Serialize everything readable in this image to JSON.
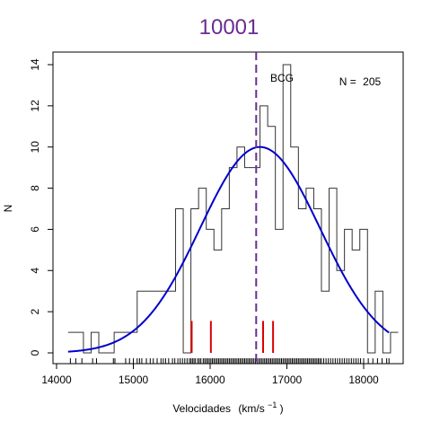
{
  "chart_data": {
    "type": "histogram",
    "title": "10001",
    "title_color": "#6a2c91",
    "xlabel": "Velocidades",
    "xlabel_unit": "(km/s",
    "xlabel_exp": "−1",
    "xlabel_close": ")",
    "ylabel": "N",
    "xlim": [
      14000,
      18500
    ],
    "ylim": [
      0,
      14
    ],
    "x_ticks": [
      14000,
      15000,
      16000,
      17000,
      18000
    ],
    "y_ticks": [
      0,
      2,
      4,
      6,
      8,
      10,
      12,
      14
    ],
    "grid": false,
    "annotation_n_label": "N =",
    "annotation_n_value": "205",
    "bcg_label": "BCG",
    "bcg_velocity": 16600,
    "bcg_color": "#6a2c91",
    "bin_width": 100,
    "histogram_steps": [
      [
        14150,
        1
      ],
      [
        14350,
        0
      ],
      [
        14450,
        1
      ],
      [
        14550,
        0
      ],
      [
        14750,
        1
      ],
      [
        15050,
        3
      ],
      [
        15550,
        7
      ],
      [
        15650,
        0
      ],
      [
        15750,
        7
      ],
      [
        15850,
        8
      ],
      [
        15950,
        6
      ],
      [
        16050,
        5
      ],
      [
        16150,
        7
      ],
      [
        16250,
        9
      ],
      [
        16350,
        10
      ],
      [
        16450,
        9
      ],
      [
        16650,
        12
      ],
      [
        16750,
        11
      ],
      [
        16850,
        6
      ],
      [
        16950,
        14
      ],
      [
        17050,
        10
      ],
      [
        17150,
        7
      ],
      [
        17250,
        8
      ],
      [
        17350,
        7
      ],
      [
        17450,
        3
      ],
      [
        17550,
        8
      ],
      [
        17650,
        4
      ],
      [
        17750,
        6
      ],
      [
        17850,
        5
      ],
      [
        17950,
        6
      ],
      [
        18050,
        0
      ],
      [
        18150,
        3
      ],
      [
        18250,
        0
      ],
      [
        18350,
        1
      ]
    ],
    "fit": {
      "type": "gaussian",
      "color": "#0000cc",
      "amplitude": 10,
      "mean": 16650,
      "sigma": 780,
      "x_range": [
        14150,
        18330
      ]
    },
    "red_markers": [
      15760,
      16010,
      16690,
      16820
    ],
    "red_marker_height": 1.55,
    "red_color": "#dd0000",
    "rug": [
      14180,
      14250,
      14330,
      14470,
      14520,
      14740,
      14760,
      14900,
      14950,
      15000,
      15050,
      15080,
      15110,
      15170,
      15220,
      15260,
      15310,
      15360,
      15390,
      15420,
      15460,
      15510,
      15540,
      15580,
      15610,
      15640,
      15670,
      15700,
      15730,
      15750,
      15770,
      15790,
      15810,
      15840,
      15860,
      15880,
      15910,
      15930,
      15950,
      15970,
      15990,
      16010,
      16030,
      16050,
      16070,
      16090,
      16110,
      16130,
      16150,
      16170,
      16190,
      16210,
      16230,
      16250,
      16270,
      16290,
      16310,
      16330,
      16350,
      16370,
      16390,
      16410,
      16430,
      16450,
      16470,
      16490,
      16510,
      16530,
      16550,
      16570,
      16590,
      16610,
      16630,
      16650,
      16670,
      16690,
      16710,
      16730,
      16750,
      16770,
      16790,
      16810,
      16830,
      16850,
      16870,
      16890,
      16910,
      16930,
      16950,
      16970,
      16990,
      17010,
      17030,
      17050,
      17070,
      17090,
      17110,
      17130,
      17150,
      17170,
      17190,
      17210,
      17230,
      17250,
      17270,
      17290,
      17310,
      17330,
      17350,
      17370,
      17390,
      17410,
      17430,
      17450,
      17480,
      17510,
      17540,
      17570,
      17600,
      17630,
      17660,
      17690,
      17720,
      17750,
      17780,
      17810,
      17840,
      17870,
      17900,
      17930,
      17960,
      18000,
      18060,
      18120,
      18180,
      18240,
      18300,
      18330
    ]
  }
}
